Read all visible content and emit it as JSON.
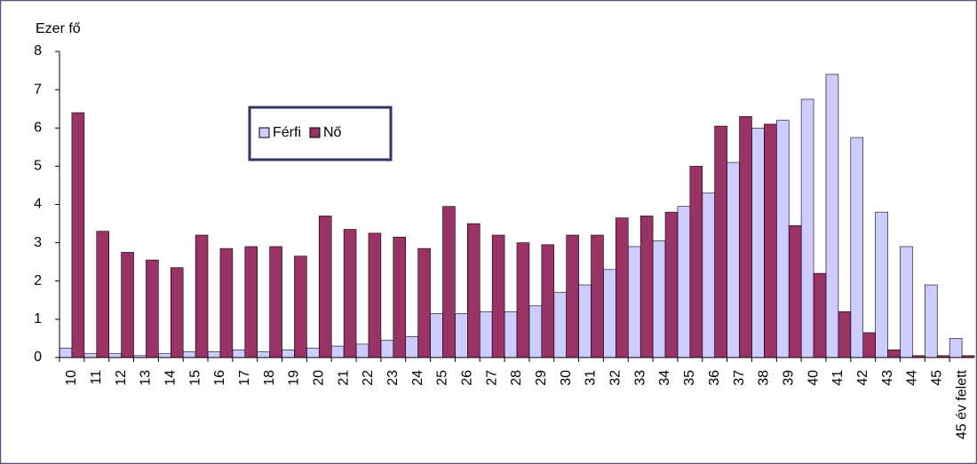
{
  "chart_data": {
    "type": "bar",
    "y_label": "Ezer fő",
    "categories": [
      "10",
      "11",
      "12",
      "13",
      "14",
      "15",
      "16",
      "17",
      "18",
      "19",
      "20",
      "21",
      "22",
      "23",
      "24",
      "25",
      "26",
      "27",
      "28",
      "29",
      "30",
      "31",
      "32",
      "33",
      "34",
      "35",
      "36",
      "37",
      "38",
      "39",
      "40",
      "41",
      "42",
      "43",
      "44",
      "45",
      "45 év felett"
    ],
    "series": [
      {
        "name": "Férfi",
        "color": "#ccccff",
        "values": [
          0.25,
          0.1,
          0.1,
          0.05,
          0.1,
          0.15,
          0.15,
          0.2,
          0.15,
          0.2,
          0.25,
          0.3,
          0.35,
          0.45,
          0.55,
          1.15,
          1.15,
          1.2,
          1.2,
          1.35,
          1.7,
          1.9,
          2.3,
          2.9,
          3.05,
          3.95,
          4.3,
          5.1,
          6.0,
          6.2,
          6.75,
          7.4,
          5.75,
          3.8,
          2.9,
          1.9,
          0.5
        ]
      },
      {
        "name": "Nő",
        "color": "#993366",
        "values": [
          6.4,
          3.3,
          2.75,
          2.55,
          2.35,
          3.2,
          2.85,
          2.9,
          2.9,
          2.65,
          3.7,
          3.35,
          3.25,
          3.15,
          2.85,
          3.95,
          3.5,
          3.2,
          3.0,
          2.95,
          3.2,
          3.2,
          3.65,
          3.7,
          3.8,
          5.0,
          6.05,
          6.3,
          6.1,
          3.45,
          2.2,
          1.2,
          0.65,
          0.2,
          0.05,
          0.05,
          0.05
        ]
      }
    ],
    "ylim": [
      0,
      8
    ],
    "yticks": [
      0,
      1,
      2,
      3,
      4,
      5,
      6,
      7,
      8
    ]
  }
}
